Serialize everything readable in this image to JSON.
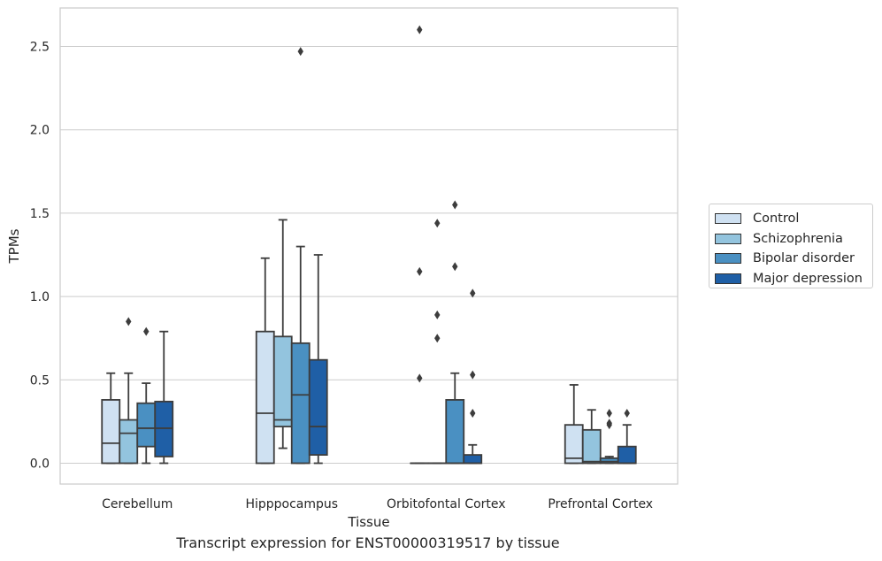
{
  "chart_data": {
    "type": "box",
    "caption": "Transcript expression for ENST00000319517 by tissue",
    "xlabel": "Tissue",
    "ylabel": "TPMs",
    "ylim": [
      -0.13,
      2.75
    ],
    "yticks": [
      0.0,
      0.5,
      1.0,
      1.5,
      2.0,
      2.5
    ],
    "ytick_labels": [
      "0.0",
      "0.5",
      "1.0",
      "1.5",
      "2.0",
      "2.5"
    ],
    "categories": [
      "Cerebellum",
      "Hipppocampus",
      "Orbitofontal Cortex",
      "Prefrontal Cortex"
    ],
    "grid": "horizontal",
    "legend_position": "right",
    "series": [
      {
        "name": "Control",
        "color": "#cfe1f2",
        "boxes": [
          {
            "whislo": 0.0,
            "q1": 0.0,
            "med": 0.12,
            "q3": 0.38,
            "whishi": 0.54,
            "fliers": []
          },
          {
            "whislo": 0.0,
            "q1": 0.0,
            "med": 0.3,
            "q3": 0.79,
            "whishi": 1.23,
            "fliers": []
          },
          {
            "whislo": 0.0,
            "q1": 0.0,
            "med": 0.0,
            "q3": 0.0,
            "whishi": 0.0,
            "fliers": [
              0.51,
              1.15,
              2.6
            ]
          },
          {
            "whislo": 0.0,
            "q1": 0.0,
            "med": 0.03,
            "q3": 0.23,
            "whishi": 0.47,
            "fliers": []
          }
        ]
      },
      {
        "name": "Schizophrenia",
        "color": "#93c4de",
        "boxes": [
          {
            "whislo": 0.0,
            "q1": 0.0,
            "med": 0.18,
            "q3": 0.26,
            "whishi": 0.54,
            "fliers": [
              0.85
            ]
          },
          {
            "whislo": 0.09,
            "q1": 0.22,
            "med": 0.26,
            "q3": 0.76,
            "whishi": 1.46,
            "fliers": []
          },
          {
            "whislo": 0.0,
            "q1": 0.0,
            "med": 0.0,
            "q3": 0.0,
            "whishi": 0.0,
            "fliers": [
              0.75,
              0.89,
              1.44
            ]
          },
          {
            "whislo": 0.0,
            "q1": 0.0,
            "med": 0.01,
            "q3": 0.2,
            "whishi": 0.32,
            "fliers": []
          }
        ]
      },
      {
        "name": "Bipolar disorder",
        "color": "#4a90c2",
        "boxes": [
          {
            "whislo": 0.0,
            "q1": 0.1,
            "med": 0.21,
            "q3": 0.36,
            "whishi": 0.48,
            "fliers": [
              0.79
            ]
          },
          {
            "whislo": 0.0,
            "q1": 0.0,
            "med": 0.41,
            "q3": 0.72,
            "whishi": 1.3,
            "fliers": [
              2.47
            ]
          },
          {
            "whislo": 0.0,
            "q1": 0.0,
            "med": 0.0,
            "q3": 0.38,
            "whishi": 0.54,
            "fliers": [
              1.18,
              1.55
            ]
          },
          {
            "whislo": 0.0,
            "q1": 0.0,
            "med": 0.01,
            "q3": 0.03,
            "whishi": 0.04,
            "fliers": [
              0.23,
              0.24,
              0.3
            ]
          }
        ]
      },
      {
        "name": "Major depression",
        "color": "#1f5fa6",
        "boxes": [
          {
            "whislo": 0.0,
            "q1": 0.04,
            "med": 0.21,
            "q3": 0.37,
            "whishi": 0.79,
            "fliers": []
          },
          {
            "whislo": 0.0,
            "q1": 0.05,
            "med": 0.22,
            "q3": 0.62,
            "whishi": 1.25,
            "fliers": []
          },
          {
            "whislo": 0.0,
            "q1": 0.0,
            "med": 0.0,
            "q3": 0.05,
            "whishi": 0.11,
            "fliers": [
              0.3,
              0.53,
              1.02
            ]
          },
          {
            "whislo": 0.0,
            "q1": 0.0,
            "med": 0.0,
            "q3": 0.1,
            "whishi": 0.23,
            "fliers": [
              0.3
            ]
          }
        ]
      }
    ]
  }
}
